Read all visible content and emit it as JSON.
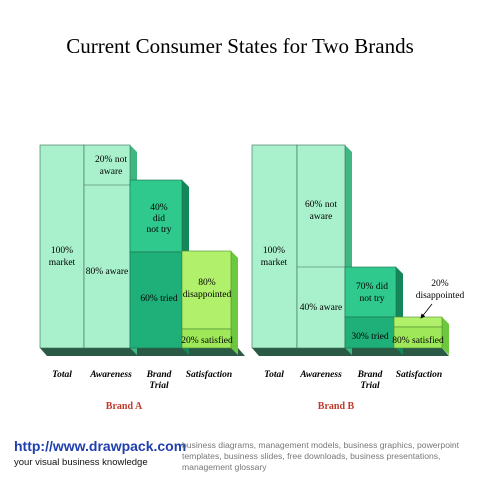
{
  "title": "Current Consumer States for Two Brands",
  "categories": [
    "Total",
    "Awareness",
    "Brand Trial",
    "Satisfaction"
  ],
  "brands": [
    {
      "name": "Brand A",
      "labels": {
        "total": "100% market",
        "not_aware": "20% not aware",
        "aware": "80% aware",
        "did_not_try": "40% did not try",
        "tried": "60% tried",
        "disappointed": "80% disappointed",
        "satisfied": "20% satisfied"
      }
    },
    {
      "name": "Brand B",
      "labels": {
        "total": "100% market",
        "not_aware": "60% not aware",
        "aware": "40% aware",
        "did_not_try": "70% did not try",
        "tried": "30% tried",
        "disappointed": "20% disappointed",
        "satisfied": "80% satisfied"
      }
    }
  ],
  "chart_data": {
    "type": "bar",
    "categories": [
      "Total",
      "Awareness",
      "Brand Trial",
      "Satisfaction"
    ],
    "series": [
      {
        "name": "Brand A",
        "values": [
          100,
          80,
          60,
          20
        ]
      },
      {
        "name": "Brand B",
        "values": [
          100,
          40,
          30,
          80
        ]
      }
    ]
  },
  "footer": {
    "url": "http://www.drawpack.com",
    "tagline": "your visual business knowledge",
    "keywords": "business diagrams, management models, business graphics, powerpoint templates, business slides, free downloads, business presentations, management glossary"
  },
  "colors": {
    "total": "#a9f0cc",
    "awareness": "#a9f0cc",
    "trial_top": "#2fc98e",
    "trial_bottom": "#1fb07a",
    "sat_top": "#b0f06b",
    "sat_bottom": "#9ee85a"
  }
}
